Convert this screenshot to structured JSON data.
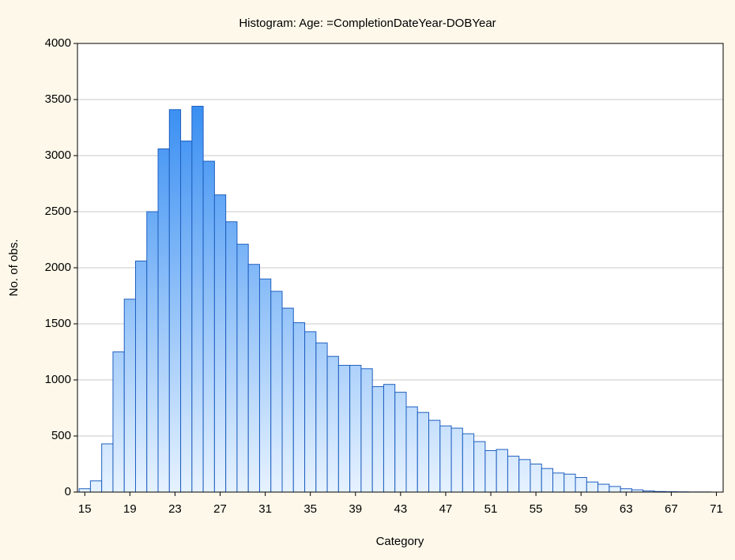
{
  "chart_data": {
    "type": "histogram",
    "title": "Histogram: Age: =CompletionDateYear-DOBYear",
    "x_label": "Category",
    "y_label": "No. of obs.",
    "bins": [
      14.5,
      15.5,
      16.5,
      17.5,
      18.5,
      19.5,
      20.5,
      21.5,
      22.5,
      23.5,
      24.5,
      25.5,
      26.5,
      27.5,
      28.5,
      29.5,
      30.5,
      31.5,
      32.5,
      33.5,
      34.5,
      35.5,
      36.5,
      37.5,
      38.5,
      39.5,
      40.5,
      41.5,
      42.5,
      43.5,
      44.5,
      45.5,
      46.5,
      47.5,
      48.5,
      49.5,
      50.5,
      51.5,
      52.5,
      53.5,
      54.5,
      55.5,
      56.5,
      57.5,
      58.5,
      59.5,
      60.5,
      61.5,
      62.5,
      63.5,
      64.5,
      65.5,
      66.5,
      67.5,
      68.5,
      69.5,
      70.5,
      71.5
    ],
    "counts": [
      30,
      100,
      430,
      1250,
      1720,
      2060,
      2500,
      3060,
      3410,
      3130,
      3440,
      2950,
      2650,
      2410,
      2210,
      2030,
      1900,
      1790,
      1640,
      1510,
      1430,
      1330,
      1210,
      1130,
      1130,
      1100,
      940,
      960,
      890,
      760,
      710,
      640,
      590,
      570,
      520,
      450,
      370,
      380,
      320,
      290,
      250,
      210,
      170,
      160,
      130,
      90,
      70,
      50,
      30,
      20,
      10,
      5,
      3,
      2,
      1,
      1,
      0
    ],
    "color": "#1e7ff0",
    "xlim": [
      14.35,
      71.6
    ],
    "xticks": [
      15,
      19,
      23,
      27,
      31,
      35,
      39,
      43,
      47,
      51,
      55,
      59,
      63,
      67,
      71
    ],
    "ylim": [
      0,
      4000
    ],
    "yticks": [
      0,
      500,
      1000,
      1500,
      2000,
      2500,
      3000,
      3500,
      4000
    ],
    "grid": true
  }
}
